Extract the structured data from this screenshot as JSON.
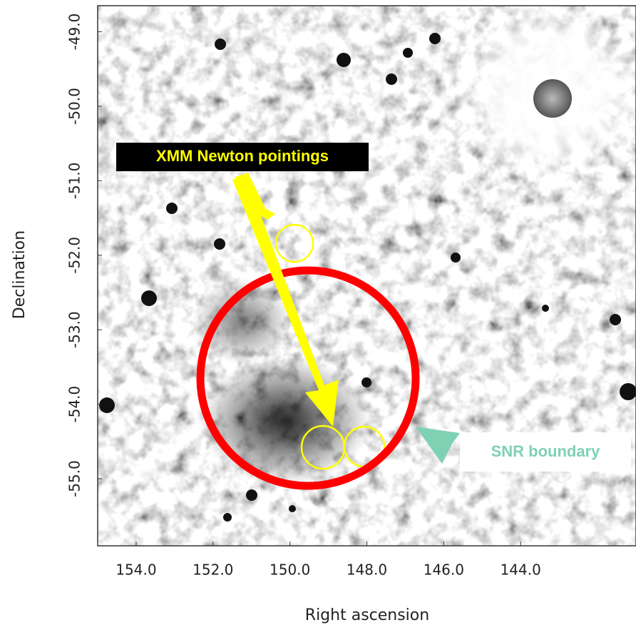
{
  "chart_data": {
    "type": "image",
    "xlabel": "Right ascension",
    "ylabel": "Declination",
    "xlim": [
      155,
      141
    ],
    "ylim": [
      -55.9,
      -48.65
    ],
    "xticks": [
      {
        "value": 154,
        "label": "154.0"
      },
      {
        "value": 152,
        "label": "152.0"
      },
      {
        "value": 150,
        "label": "150.0"
      },
      {
        "value": 148,
        "label": "148.0"
      },
      {
        "value": 146,
        "label": "146.0"
      },
      {
        "value": 144,
        "label": "144.0"
      }
    ],
    "yticks": [
      {
        "value": -49,
        "label": "-49.0"
      },
      {
        "value": -50,
        "label": "-50.0"
      },
      {
        "value": -51,
        "label": "-51.0"
      },
      {
        "value": -52,
        "label": "-52.0"
      },
      {
        "value": -53,
        "label": "-53.0"
      },
      {
        "value": -54,
        "label": "-54.0"
      },
      {
        "value": -55,
        "label": "-55.0"
      }
    ],
    "annotations": [
      "XMM Newton pointings",
      "SNR boundary"
    ]
  }
}
